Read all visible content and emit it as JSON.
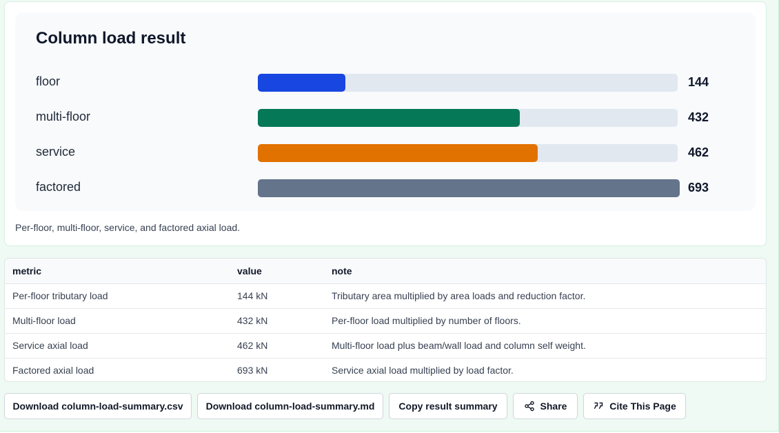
{
  "colors": {
    "floor": "#1746e0",
    "multi_floor": "#047857",
    "service": "#e27200",
    "factored": "#64748b",
    "track": "#e2e8f0"
  },
  "chart_data": {
    "type": "bar",
    "orientation": "horizontal",
    "title": "Column load result",
    "categories": [
      "floor",
      "multi-floor",
      "service",
      "factored"
    ],
    "values": [
      144,
      432,
      462,
      693
    ],
    "xlim": [
      0,
      693
    ],
    "grid": false
  },
  "caption": "Per-floor, multi-floor, service, and factored axial load.",
  "table": {
    "headers": [
      "metric",
      "value",
      "note"
    ],
    "rows": [
      [
        "Per-floor tributary load",
        "144 kN",
        "Tributary area multiplied by area loads and reduction factor."
      ],
      [
        "Multi-floor load",
        "432 kN",
        "Per-floor load multiplied by number of floors."
      ],
      [
        "Service axial load",
        "462 kN",
        "Multi-floor load plus beam/wall load and column self weight."
      ],
      [
        "Factored axial load",
        "693 kN",
        "Service axial load multiplied by load factor."
      ]
    ]
  },
  "actions": {
    "download_csv": "Download column-load-summary.csv",
    "download_md": "Download column-load-summary.md",
    "copy_summary": "Copy result summary",
    "share": "Share",
    "cite": "Cite This Page",
    "share_icon": "share-icon",
    "cite_icon": "quote-icon"
  }
}
